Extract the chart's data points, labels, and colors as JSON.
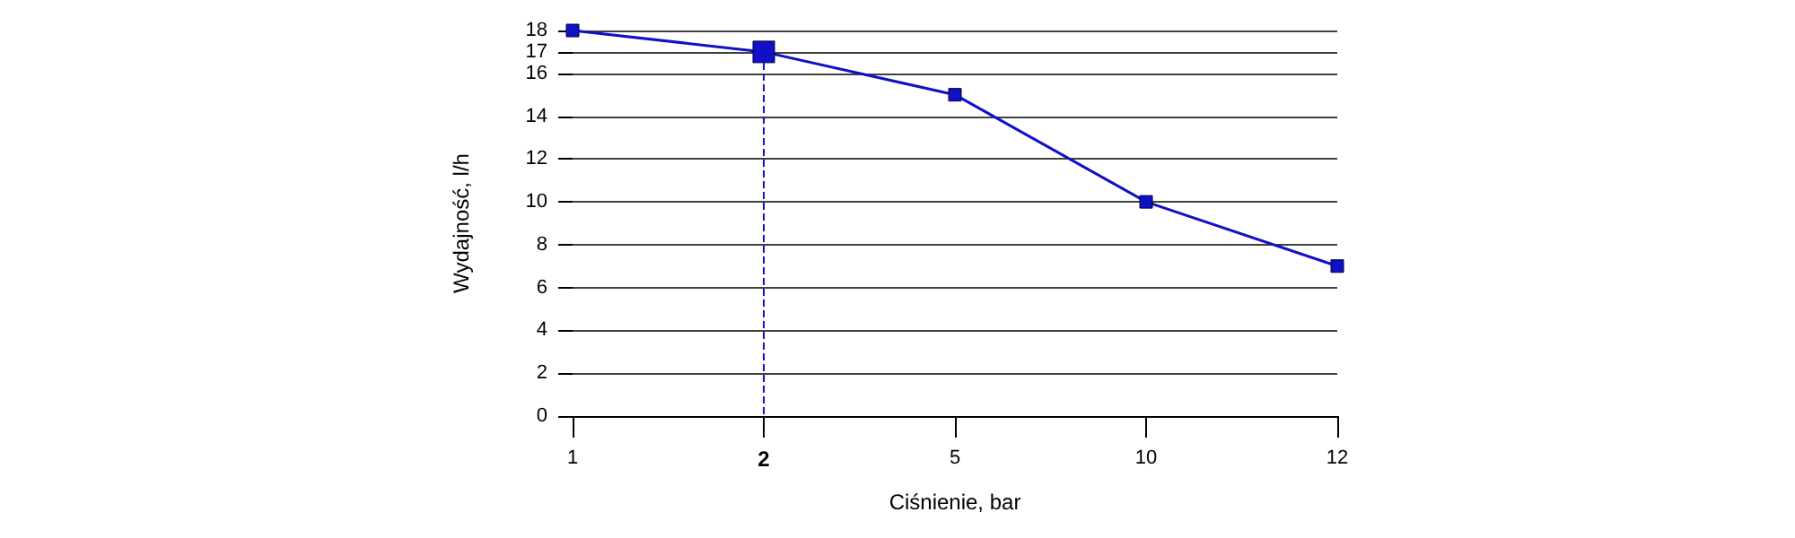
{
  "chart_data": {
    "type": "line",
    "xlabel": "Ciśnienie, bar",
    "ylabel": "Wydajność, l/h",
    "categories": [
      "1",
      "2",
      "5",
      "10",
      "12"
    ],
    "series": [
      {
        "color": "#1010c8",
        "values": [
          18,
          17,
          15,
          10,
          7
        ]
      }
    ],
    "ylim": [
      0,
      18
    ],
    "yticks": [
      0,
      2,
      4,
      6,
      8,
      10,
      12,
      14,
      16,
      17,
      18
    ],
    "ref_lines": [
      {
        "axis": "x",
        "value": "2",
        "line_style": "dashed",
        "color": "#1010c8"
      }
    ],
    "grid": "y",
    "marker": "square",
    "line_style": "solid"
  }
}
